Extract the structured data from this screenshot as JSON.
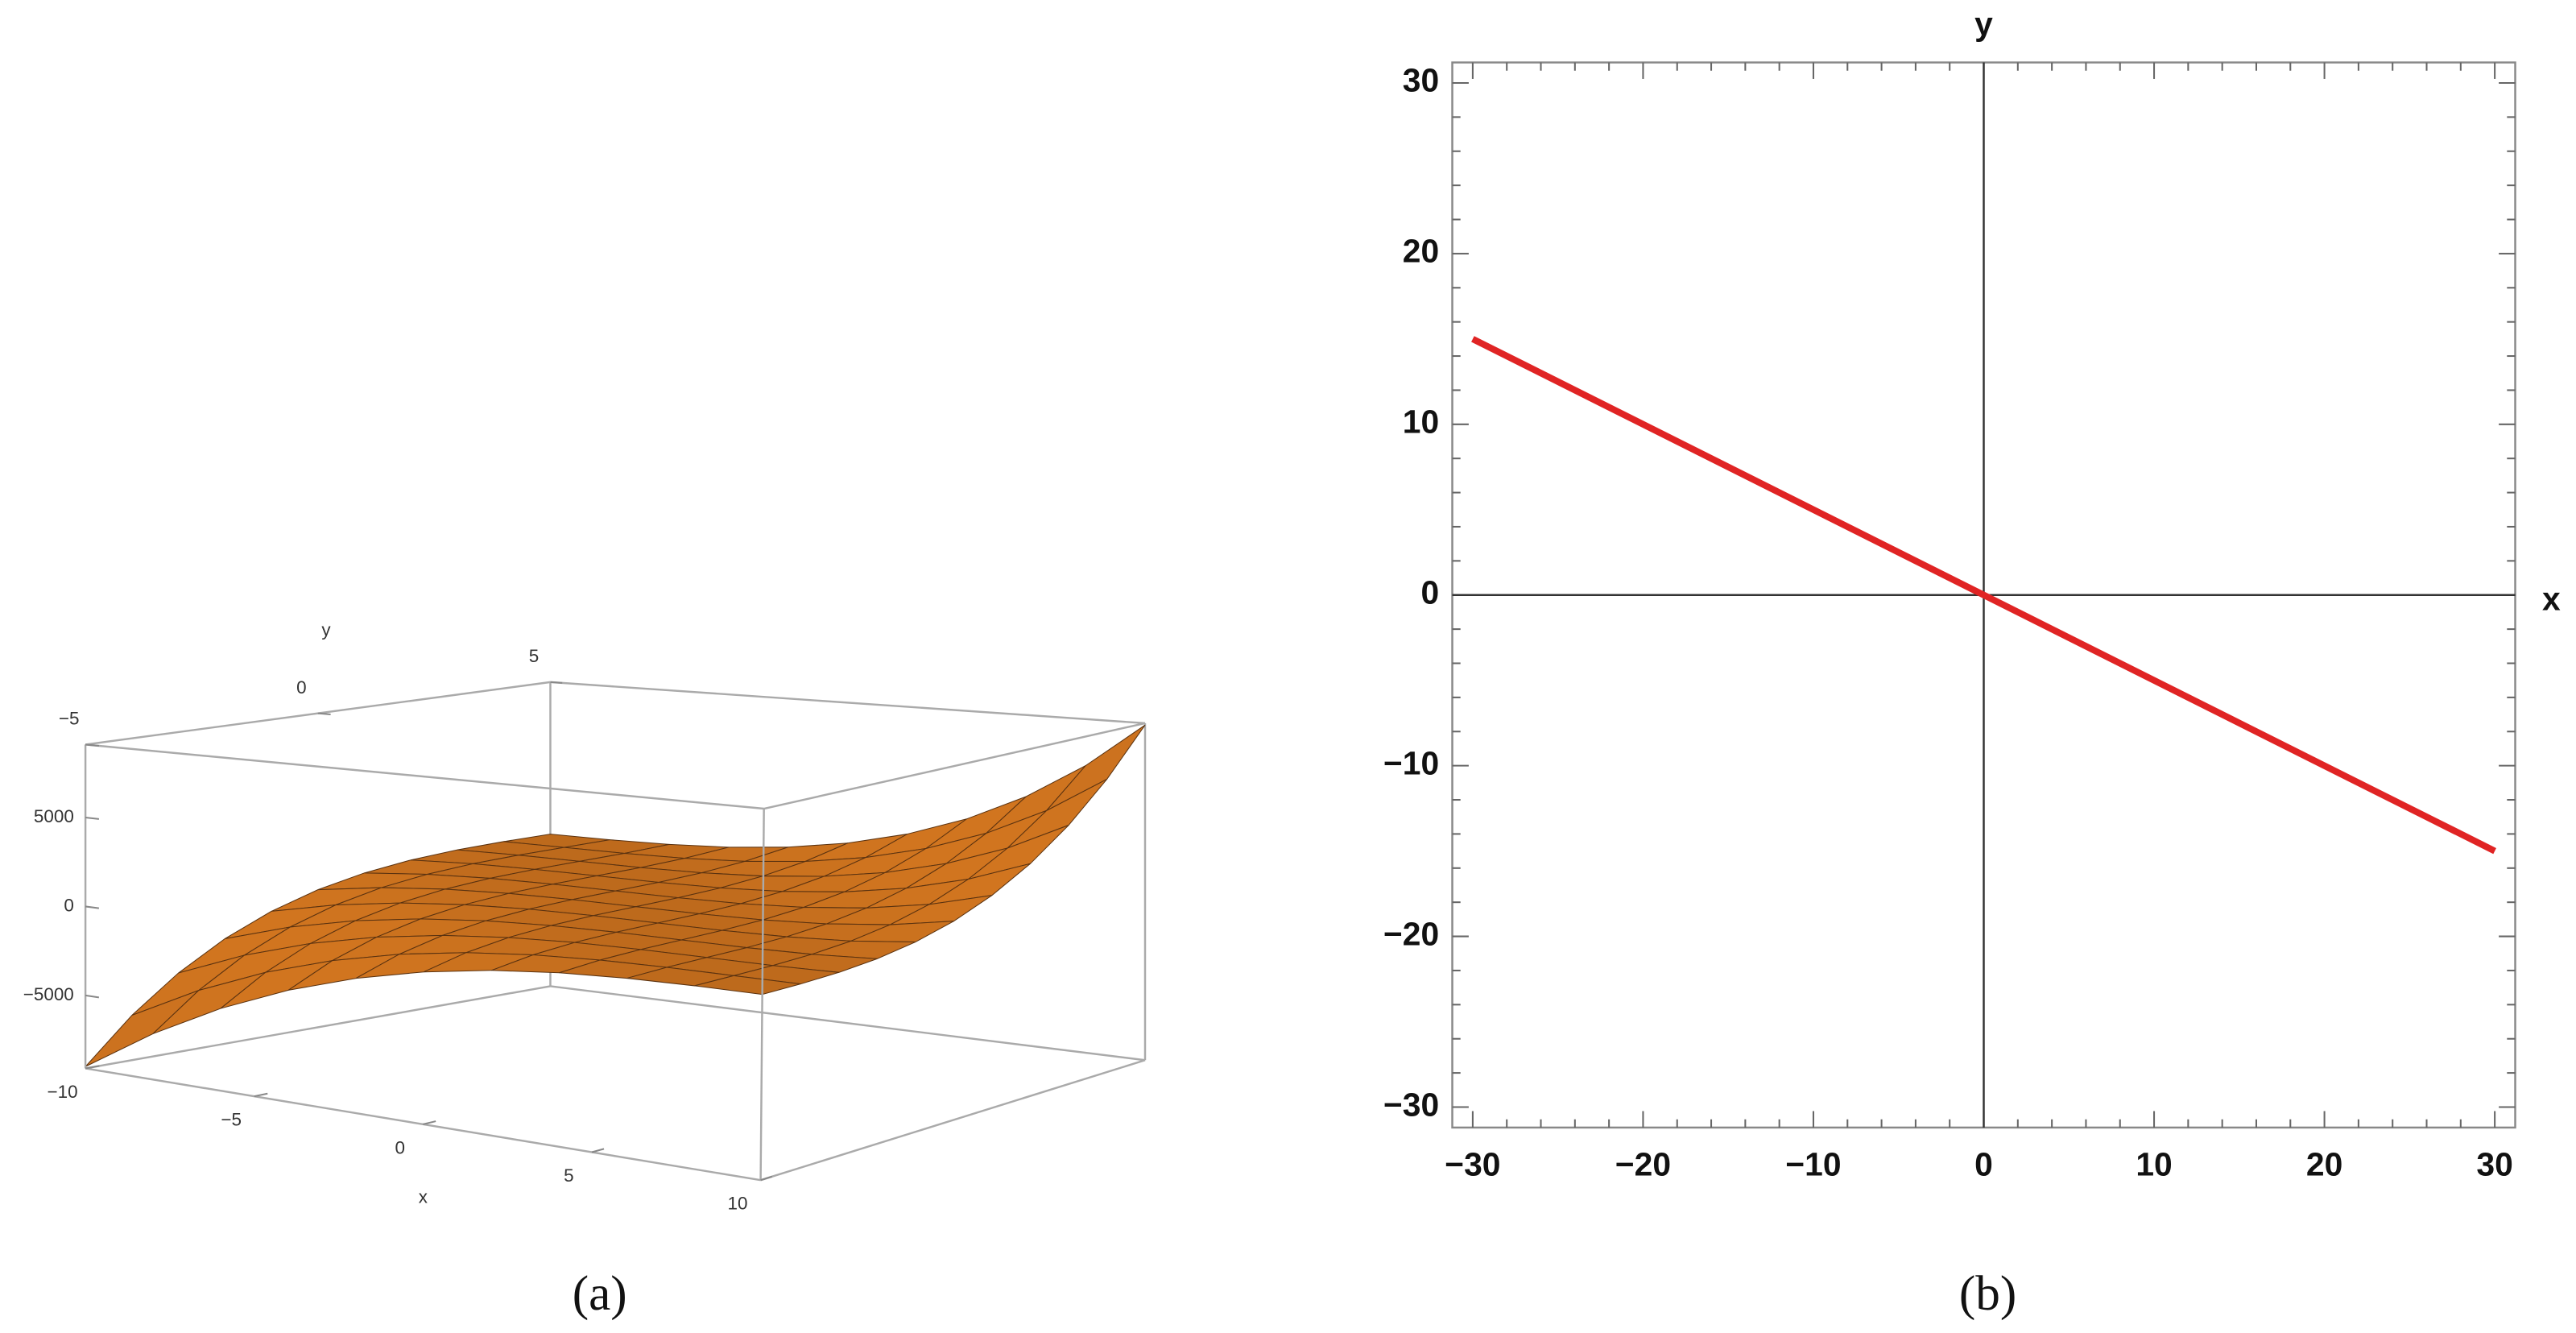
{
  "chart_data": [
    {
      "type": "surface",
      "caption": "(a)",
      "xlabel": "x",
      "ylabel": "y",
      "color": "#c8701e",
      "x": [
        -10,
        -8,
        -6,
        -4,
        -2,
        0,
        2,
        4,
        6,
        8,
        10
      ],
      "y": [
        -5,
        -4,
        -3,
        -2,
        -1,
        0,
        1,
        2,
        3,
        4,
        5
      ],
      "z": [
        [
          -9000,
          -6561,
          -4608,
          -3087,
          -1944,
          -1125,
          -576,
          -243,
          -72,
          -9,
          0
        ],
        [
          -6561,
          -4608,
          -3087,
          -1944,
          -1125,
          -576,
          -243,
          -72,
          -9,
          0,
          9
        ],
        [
          -4608,
          -3087,
          -1944,
          -1125,
          -576,
          -243,
          -72,
          -9,
          0,
          9,
          72
        ],
        [
          -3087,
          -1944,
          -1125,
          -576,
          -243,
          -72,
          -9,
          0,
          9,
          72,
          243
        ],
        [
          -1944,
          -1125,
          -576,
          -243,
          -72,
          -9,
          0,
          9,
          72,
          243,
          576
        ],
        [
          -1125,
          -576,
          -243,
          -72,
          -9,
          0,
          9,
          72,
          243,
          576,
          1125
        ],
        [
          -576,
          -243,
          -72,
          -9,
          0,
          9,
          72,
          243,
          576,
          1125,
          1944
        ],
        [
          -243,
          -72,
          -9,
          0,
          9,
          72,
          243,
          576,
          1125,
          1944,
          3087
        ],
        [
          -72,
          -9,
          0,
          9,
          72,
          243,
          576,
          1125,
          1944,
          3087,
          4608
        ],
        [
          -9,
          0,
          9,
          72,
          243,
          576,
          1125,
          1944,
          3087,
          4608,
          6561
        ],
        [
          0,
          9,
          72,
          243,
          576,
          1125,
          1944,
          3087,
          4608,
          6561,
          9000
        ]
      ],
      "xlim": [
        -10,
        10
      ],
      "ylim": [
        -5,
        5
      ],
      "zlim": [
        -9100,
        9100
      ],
      "xticks": [
        {
          "value": -10,
          "label": "−10"
        },
        {
          "value": -5,
          "label": "−5"
        },
        0,
        5,
        10
      ],
      "yticks": [
        {
          "value": -5,
          "label": "−5"
        },
        0,
        5
      ],
      "zticks": [
        {
          "value": -5000,
          "label": "−5000"
        },
        0,
        5000
      ]
    },
    {
      "type": "line",
      "caption": "(b)",
      "xlabel": "x",
      "ylabel": "y",
      "color": "#e02424",
      "x": [
        -30,
        30
      ],
      "values": [
        15,
        -15
      ],
      "xlim": [
        -31.2,
        31.2
      ],
      "ylim": [
        -31.2,
        31.2
      ],
      "xticks": [
        {
          "value": -30,
          "label": "−30"
        },
        {
          "value": -20,
          "label": "−20"
        },
        {
          "value": -10,
          "label": "−10"
        },
        0,
        10,
        20,
        30
      ],
      "yticks": [
        {
          "value": -30,
          "label": "−30"
        },
        {
          "value": -20,
          "label": "−20"
        },
        {
          "value": -10,
          "label": "−10"
        },
        0,
        10,
        20,
        30
      ],
      "xminorticks": [
        -28,
        -26,
        -24,
        -22,
        -18,
        -16,
        -14,
        -12,
        -8,
        -6,
        -4,
        -2,
        2,
        4,
        6,
        8,
        12,
        14,
        16,
        18,
        22,
        24,
        26,
        28
      ],
      "yminorticks": [
        -28,
        -26,
        -24,
        -22,
        -18,
        -16,
        -14,
        -12,
        -8,
        -6,
        -4,
        -2,
        2,
        4,
        6,
        8,
        12,
        14,
        16,
        18,
        22,
        24,
        26,
        28
      ]
    }
  ]
}
